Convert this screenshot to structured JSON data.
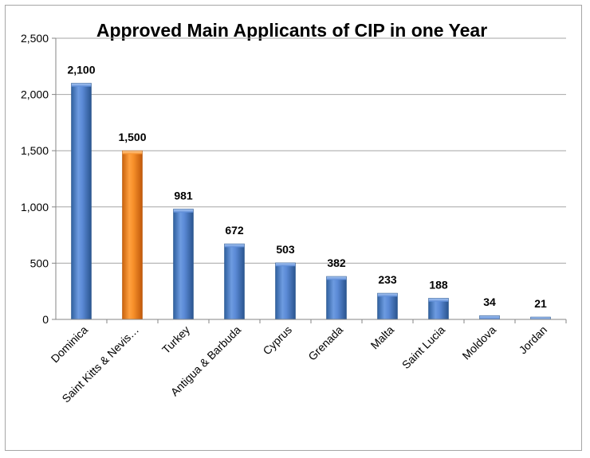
{
  "chart_data": {
    "type": "bar",
    "title": "Approved Main Applicants of CIP in one Year",
    "xlabel": "",
    "ylabel": "",
    "categories": [
      "Dominica",
      "Saint Kitts & Nevis…",
      "Turkey",
      "Antigua & Barbuda",
      "Cyprus",
      "Grenada",
      "Malta",
      "Saint Lucia",
      "Moldova",
      "Jordan"
    ],
    "values": [
      2100,
      1500,
      981,
      672,
      503,
      382,
      233,
      188,
      34,
      21
    ],
    "data_labels": [
      "2,100",
      "1,500",
      "981",
      "672",
      "503",
      "382",
      "233",
      "188",
      "34",
      "21"
    ],
    "ylim": [
      0,
      2500
    ],
    "yticks": [
      0,
      500,
      1000,
      1500,
      2000,
      2500
    ],
    "ytick_labels": [
      "0",
      "500",
      "1,000",
      "1,500",
      "2,000",
      "2,500"
    ],
    "grid": true,
    "legend": "none",
    "colors": {
      "default_bar": "#4f81bd",
      "highlight_bar": "#f79646",
      "highlight_index": 1,
      "gridline": "#a6a6a6",
      "axis": "#868686"
    }
  }
}
